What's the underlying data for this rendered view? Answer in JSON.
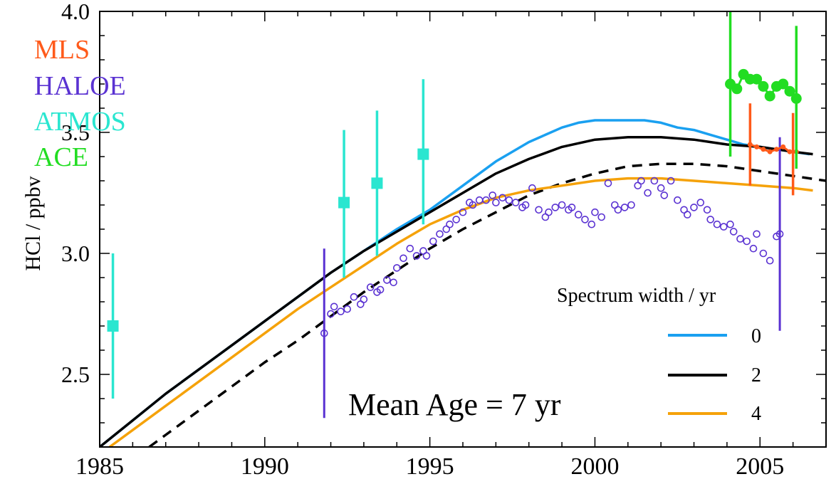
{
  "chart_data": {
    "type": "line",
    "title": "",
    "xlabel": "",
    "ylabel": "HCl / ppbv",
    "xlim": [
      1985,
      2007
    ],
    "ylim": [
      2.2,
      4.0
    ],
    "x_ticks": [
      1985,
      1990,
      1995,
      2000,
      2005
    ],
    "x_tick_labels": [
      "1985",
      "1990",
      "1995",
      "2000",
      "2005"
    ],
    "y_ticks": [
      2.5,
      3.0,
      3.5,
      4.0
    ],
    "y_tick_labels": [
      "2.5",
      "3.0",
      "3.5",
      "4.0"
    ],
    "grid": false,
    "annotation": "Mean Age = 7 yr",
    "instrument_legend": [
      {
        "name": "MLS",
        "color": "#ff5a1a"
      },
      {
        "name": "HALOE",
        "color": "#5a32d2"
      },
      {
        "name": "ATMOS",
        "color": "#2ae6d0"
      },
      {
        "name": "ACE",
        "color": "#22dd22"
      }
    ],
    "spectrum_legend_title": "Spectrum width / yr",
    "series": [
      {
        "name": "0",
        "color": "#1aa0f0",
        "style": "solid",
        "x": [
          1985.0,
          1986.0,
          1987.0,
          1988.0,
          1989.0,
          1990.0,
          1991.0,
          1992.0,
          1993.0,
          1994.0,
          1995.0,
          1995.5,
          1996.0,
          1996.5,
          1997.0,
          1997.5,
          1998.0,
          1998.5,
          1999.0,
          1999.5,
          2000.0,
          2000.5,
          2001.0,
          2001.5,
          2002.0,
          2002.5,
          2003.0,
          2003.5,
          2004.0,
          2004.5,
          2005.0,
          2005.5,
          2006.0,
          2006.5
        ],
        "y": [
          2.2,
          2.31,
          2.42,
          2.52,
          2.62,
          2.72,
          2.82,
          2.92,
          3.01,
          3.1,
          3.18,
          3.23,
          3.28,
          3.33,
          3.38,
          3.42,
          3.46,
          3.49,
          3.52,
          3.54,
          3.55,
          3.55,
          3.55,
          3.55,
          3.54,
          3.52,
          3.51,
          3.49,
          3.47,
          3.45,
          3.44,
          3.43,
          3.42,
          3.41
        ]
      },
      {
        "name": "2",
        "color": "#000000",
        "style": "solid",
        "x": [
          1985.0,
          1986.0,
          1987.0,
          1988.0,
          1989.0,
          1990.0,
          1991.0,
          1992.0,
          1993.0,
          1994.0,
          1995.0,
          1996.0,
          1997.0,
          1998.0,
          1999.0,
          2000.0,
          2001.0,
          2001.5,
          2002.0,
          2003.0,
          2004.0,
          2005.0,
          2006.0,
          2006.6
        ],
        "y": [
          2.2,
          2.31,
          2.42,
          2.52,
          2.62,
          2.72,
          2.82,
          2.92,
          3.01,
          3.09,
          3.17,
          3.25,
          3.33,
          3.39,
          3.44,
          3.47,
          3.48,
          3.48,
          3.48,
          3.47,
          3.45,
          3.44,
          3.42,
          3.41
        ]
      },
      {
        "name": "4",
        "color": "#f5a20a",
        "style": "solid",
        "x": [
          1985.3,
          1986.0,
          1987.0,
          1988.0,
          1989.0,
          1990.0,
          1991.0,
          1992.0,
          1993.0,
          1994.0,
          1995.0,
          1996.0,
          1997.0,
          1998.0,
          1999.0,
          2000.0,
          2001.0,
          2002.0,
          2003.0,
          2004.0,
          2005.0,
          2006.0,
          2006.6
        ],
        "y": [
          2.2,
          2.27,
          2.37,
          2.47,
          2.57,
          2.67,
          2.77,
          2.86,
          2.95,
          3.04,
          3.12,
          3.18,
          3.23,
          3.26,
          3.28,
          3.3,
          3.31,
          3.31,
          3.3,
          3.29,
          3.28,
          3.27,
          3.26
        ]
      },
      {
        "name": "",
        "color": "#000000",
        "style": "dashed",
        "x": [
          1986.5,
          1987.0,
          1988.0,
          1989.0,
          1990.0,
          1991.0,
          1992.0,
          1993.0,
          1994.0,
          1995.0,
          1996.0,
          1997.0,
          1998.0,
          1999.0,
          2000.0,
          2001.0,
          2002.0,
          2003.0,
          2004.0,
          2005.0,
          2006.0,
          2007.0
        ],
        "y": [
          2.2,
          2.25,
          2.35,
          2.45,
          2.55,
          2.64,
          2.74,
          2.84,
          2.93,
          3.02,
          3.1,
          3.17,
          3.24,
          3.29,
          3.33,
          3.36,
          3.37,
          3.37,
          3.36,
          3.34,
          3.32,
          3.3
        ]
      }
    ],
    "atmos": {
      "color": "#2ae6d0",
      "points": [
        {
          "x": 1985.4,
          "y": 2.7,
          "low": 2.4,
          "high": 3.0
        },
        {
          "x": 1992.4,
          "y": 3.21,
          "low": 2.9,
          "high": 3.51
        },
        {
          "x": 1993.4,
          "y": 3.29,
          "low": 2.99,
          "high": 3.59
        },
        {
          "x": 1994.8,
          "y": 3.41,
          "low": 3.12,
          "high": 3.72
        }
      ]
    },
    "haloe": {
      "color": "#5a32d2",
      "error_bars": [
        {
          "x": 1991.8,
          "low": 2.32,
          "high": 3.02
        },
        {
          "x": 2005.6,
          "low": 2.68,
          "high": 3.48
        }
      ],
      "points": [
        [
          1991.8,
          2.67
        ],
        [
          1992.0,
          2.75
        ],
        [
          1992.1,
          2.78
        ],
        [
          1992.3,
          2.76
        ],
        [
          1992.5,
          2.77
        ],
        [
          1992.7,
          2.82
        ],
        [
          1992.9,
          2.79
        ],
        [
          1993.0,
          2.81
        ],
        [
          1993.2,
          2.86
        ],
        [
          1993.4,
          2.84
        ],
        [
          1993.5,
          2.85
        ],
        [
          1993.7,
          2.89
        ],
        [
          1993.9,
          2.88
        ],
        [
          1994.0,
          2.94
        ],
        [
          1994.2,
          2.98
        ],
        [
          1994.4,
          3.02
        ],
        [
          1994.6,
          2.99
        ],
        [
          1994.8,
          3.01
        ],
        [
          1994.9,
          2.99
        ],
        [
          1995.1,
          3.05
        ],
        [
          1995.3,
          3.08
        ],
        [
          1995.5,
          3.1
        ],
        [
          1995.6,
          3.12
        ],
        [
          1995.8,
          3.14
        ],
        [
          1996.0,
          3.17
        ],
        [
          1996.2,
          3.21
        ],
        [
          1996.3,
          3.2
        ],
        [
          1996.5,
          3.22
        ],
        [
          1996.7,
          3.22
        ],
        [
          1996.9,
          3.24
        ],
        [
          1997.0,
          3.21
        ],
        [
          1997.2,
          3.23
        ],
        [
          1997.4,
          3.22
        ],
        [
          1997.6,
          3.21
        ],
        [
          1997.8,
          3.19
        ],
        [
          1997.9,
          3.2
        ],
        [
          1998.1,
          3.27
        ],
        [
          1998.3,
          3.18
        ],
        [
          1998.5,
          3.15
        ],
        [
          1998.6,
          3.17
        ],
        [
          1998.8,
          3.19
        ],
        [
          1999.0,
          3.2
        ],
        [
          1999.2,
          3.18
        ],
        [
          1999.3,
          3.19
        ],
        [
          1999.5,
          3.16
        ],
        [
          1999.7,
          3.14
        ],
        [
          1999.9,
          3.12
        ],
        [
          2000.0,
          3.17
        ],
        [
          2000.2,
          3.15
        ],
        [
          2000.4,
          3.29
        ],
        [
          2000.6,
          3.2
        ],
        [
          2000.7,
          3.18
        ],
        [
          2000.9,
          3.19
        ],
        [
          2001.1,
          3.2
        ],
        [
          2001.3,
          3.28
        ],
        [
          2001.4,
          3.3
        ],
        [
          2001.6,
          3.25
        ],
        [
          2001.8,
          3.3
        ],
        [
          2002.0,
          3.27
        ],
        [
          2002.1,
          3.24
        ],
        [
          2002.3,
          3.3
        ],
        [
          2002.5,
          3.22
        ],
        [
          2002.7,
          3.18
        ],
        [
          2002.8,
          3.16
        ],
        [
          2003.0,
          3.19
        ],
        [
          2003.2,
          3.21
        ],
        [
          2003.4,
          3.18
        ],
        [
          2003.5,
          3.14
        ],
        [
          2003.7,
          3.12
        ],
        [
          2003.9,
          3.11
        ],
        [
          2004.1,
          3.12
        ],
        [
          2004.2,
          3.09
        ],
        [
          2004.4,
          3.06
        ],
        [
          2004.6,
          3.05
        ],
        [
          2004.8,
          3.02
        ],
        [
          2004.9,
          3.08
        ],
        [
          2005.1,
          3.0
        ],
        [
          2005.3,
          2.97
        ],
        [
          2005.5,
          3.07
        ],
        [
          2005.6,
          3.08
        ]
      ]
    },
    "ace": {
      "color": "#22dd22",
      "x": [
        2004.1,
        2004.3,
        2004.5,
        2004.7,
        2004.9,
        2005.1,
        2005.3,
        2005.5,
        2005.7,
        2005.9,
        2006.1
      ],
      "y": [
        3.7,
        3.68,
        3.74,
        3.72,
        3.72,
        3.69,
        3.65,
        3.69,
        3.7,
        3.67,
        3.64
      ],
      "error_bars": [
        {
          "x": 2004.1,
          "low": 3.4,
          "high": 4.0
        },
        {
          "x": 2006.1,
          "low": 3.35,
          "high": 3.94
        }
      ]
    },
    "mls": {
      "color": "#ff5a1a",
      "x": [
        2004.7,
        2004.9,
        2005.1,
        2005.3,
        2005.5,
        2005.7,
        2005.9,
        2006.1
      ],
      "y": [
        3.45,
        3.44,
        3.43,
        3.42,
        3.43,
        3.44,
        3.42,
        3.42
      ],
      "error_bars": [
        {
          "x": 2004.7,
          "low": 3.28,
          "high": 3.62
        },
        {
          "x": 2006.0,
          "low": 3.24,
          "high": 3.58
        }
      ]
    }
  }
}
